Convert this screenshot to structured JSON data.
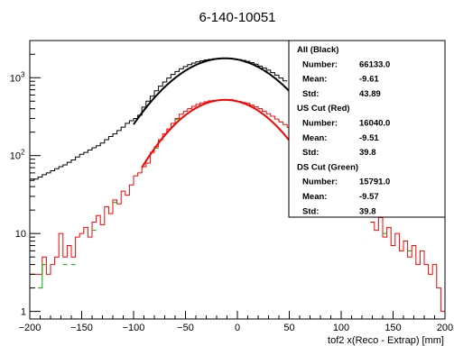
{
  "chart_data": {
    "type": "line",
    "title": "6-140-10051",
    "xlabel": "tof2 x(Reco - Extrap) [mm]",
    "ylabel": "",
    "xlim": [
      -200,
      200
    ],
    "ylim": [
      0.8,
      3000
    ],
    "yscale": "log",
    "grid": false,
    "x_ticks": [
      -200,
      -150,
      -100,
      -50,
      0,
      50,
      100,
      150,
      200
    ],
    "x_tick_labels": [
      "−200",
      "−150",
      "−100",
      "−50",
      "0",
      "50",
      "100",
      "150",
      "200"
    ],
    "y_ticks": [
      1,
      10,
      100,
      1000
    ],
    "y_tick_mantissa": [
      "1",
      "10",
      "10",
      "10"
    ],
    "y_tick_exponent": [
      "",
      "",
      "2",
      "3"
    ],
    "bin_width": 4,
    "series": [
      {
        "color": "#000000",
        "bins": [
          [
            -200,
            48
          ],
          [
            -196,
            50
          ],
          [
            -192,
            53
          ],
          [
            -188,
            57
          ],
          [
            -184,
            60
          ],
          [
            -180,
            64
          ],
          [
            -176,
            68
          ],
          [
            -172,
            72
          ],
          [
            -168,
            76
          ],
          [
            -164,
            82
          ],
          [
            -160,
            88
          ],
          [
            -156,
            96
          ],
          [
            -152,
            104
          ],
          [
            -148,
            110
          ],
          [
            -144,
            118
          ],
          [
            -140,
            126
          ],
          [
            -136,
            134
          ],
          [
            -132,
            145
          ],
          [
            -128,
            160
          ],
          [
            -124,
            176
          ],
          [
            -120,
            190
          ],
          [
            -116,
            210
          ],
          [
            -112,
            232
          ],
          [
            -108,
            260
          ],
          [
            -104,
            280
          ],
          [
            -100,
            300
          ],
          [
            -96,
            330
          ],
          [
            -92,
            420
          ],
          [
            -88,
            500
          ],
          [
            -84,
            580
          ],
          [
            -80,
            680
          ],
          [
            -76,
            780
          ],
          [
            -72,
            880
          ],
          [
            -68,
            990
          ],
          [
            -64,
            1100
          ],
          [
            -60,
            1200
          ],
          [
            -56,
            1300
          ],
          [
            -52,
            1390
          ],
          [
            -48,
            1470
          ],
          [
            -44,
            1540
          ],
          [
            -40,
            1600
          ],
          [
            -36,
            1650
          ],
          [
            -32,
            1690
          ],
          [
            -28,
            1720
          ],
          [
            -24,
            1750
          ],
          [
            -20,
            1760
          ],
          [
            -16,
            1770
          ],
          [
            -12,
            1775
          ],
          [
            -8,
            1760
          ],
          [
            -4,
            1740
          ],
          [
            0,
            1710
          ],
          [
            4,
            1670
          ],
          [
            8,
            1620
          ],
          [
            12,
            1560
          ],
          [
            16,
            1490
          ],
          [
            20,
            1410
          ],
          [
            24,
            1330
          ],
          [
            28,
            1250
          ],
          [
            32,
            1160
          ],
          [
            36,
            1080
          ],
          [
            40,
            990
          ],
          [
            44,
            910
          ]
        ],
        "fit": {
          "mean": -12,
          "sigma": 44.5,
          "amplitude": 1775,
          "x_start": -100,
          "x_end": 50
        }
      },
      {
        "color": "#ff0000",
        "bins": [
          [
            -200,
            3
          ],
          [
            -196,
            3
          ],
          [
            -192,
            3
          ],
          [
            -188,
            5
          ],
          [
            -184,
            3
          ],
          [
            -180,
            4
          ],
          [
            -176,
            5
          ],
          [
            -172,
            10
          ],
          [
            -168,
            5
          ],
          [
            -164,
            7
          ],
          [
            -160,
            5
          ],
          [
            -156,
            9
          ],
          [
            -152,
            10
          ],
          [
            -148,
            12
          ],
          [
            -144,
            9
          ],
          [
            -140,
            14
          ],
          [
            -136,
            17
          ],
          [
            -132,
            13
          ],
          [
            -128,
            22
          ],
          [
            -124,
            18
          ],
          [
            -120,
            27
          ],
          [
            -116,
            24
          ],
          [
            -112,
            35
          ],
          [
            -108,
            31
          ],
          [
            -104,
            42
          ],
          [
            -100,
            55
          ],
          [
            -96,
            60
          ],
          [
            -92,
            72
          ],
          [
            -88,
            80
          ],
          [
            -84,
            110
          ],
          [
            -80,
            130
          ],
          [
            -76,
            160
          ],
          [
            -72,
            190
          ],
          [
            -68,
            220
          ],
          [
            -64,
            260
          ],
          [
            -60,
            300
          ],
          [
            -56,
            340
          ],
          [
            -52,
            370
          ],
          [
            -48,
            400
          ],
          [
            -44,
            430
          ],
          [
            -40,
            455
          ],
          [
            -36,
            475
          ],
          [
            -32,
            490
          ],
          [
            -28,
            505
          ],
          [
            -24,
            510
          ],
          [
            -20,
            518
          ],
          [
            -16,
            520
          ],
          [
            -12,
            515
          ],
          [
            -8,
            522
          ],
          [
            -4,
            505
          ],
          [
            0,
            495
          ],
          [
            4,
            480
          ],
          [
            8,
            470
          ],
          [
            12,
            445
          ],
          [
            16,
            425
          ],
          [
            20,
            400
          ],
          [
            24,
            370
          ],
          [
            28,
            345
          ],
          [
            32,
            320
          ],
          [
            36,
            295
          ],
          [
            40,
            270
          ],
          [
            44,
            250
          ],
          [
            48,
            230
          ],
          [
            128,
            14
          ],
          [
            132,
            11
          ],
          [
            136,
            16
          ],
          [
            140,
            9
          ],
          [
            144,
            12
          ],
          [
            148,
            7
          ],
          [
            152,
            10
          ],
          [
            156,
            6
          ],
          [
            160,
            8
          ],
          [
            164,
            5
          ],
          [
            168,
            7
          ],
          [
            172,
            4
          ],
          [
            176,
            6
          ],
          [
            180,
            4
          ],
          [
            184,
            3
          ],
          [
            188,
            4
          ],
          [
            192,
            2
          ],
          [
            196,
            1
          ]
        ],
        "fit": {
          "mean": -12,
          "sigma": 40,
          "amplitude": 520,
          "x_start": -92,
          "x_end": 50
        }
      },
      {
        "color": "#00aa00",
        "bins": [
          [
            -192,
            2
          ],
          [
            -188,
            4
          ],
          [
            -168,
            4
          ],
          [
            -160,
            4
          ],
          [
            -140,
            11
          ],
          [
            -120,
            25
          ],
          [
            -80,
            125
          ],
          [
            -60,
            290
          ],
          [
            140,
            10
          ],
          [
            164,
            6
          ]
        ]
      }
    ],
    "stats": [
      {
        "header": "All (Black)",
        "rows": [
          {
            "label": "Number:",
            "value": "66133.0"
          },
          {
            "label": "Mean:",
            "value": "-9.61"
          },
          {
            "label": "Std:",
            "value": "43.89"
          }
        ]
      },
      {
        "header": "US Cut (Red)",
        "rows": [
          {
            "label": "Number:",
            "value": "16040.0"
          },
          {
            "label": "Mean:",
            "value": "-9.51"
          },
          {
            "label": "Std:",
            "value": "39.8"
          }
        ]
      },
      {
        "header": "DS Cut (Green)",
        "rows": [
          {
            "label": "Number:",
            "value": "15791.0"
          },
          {
            "label": "Mean:",
            "value": "-9.57"
          },
          {
            "label": "Std:",
            "value": "39.8"
          }
        ]
      }
    ]
  }
}
